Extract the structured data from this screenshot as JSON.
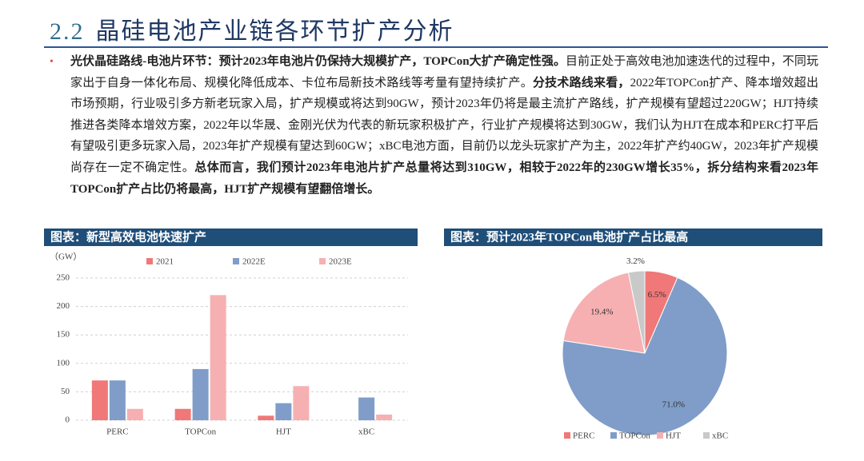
{
  "header": {
    "number": "2.2",
    "title": "晶硅电池产业链各环节扩产分析"
  },
  "body": {
    "runs": [
      {
        "text": "光伏晶硅路线-电池片环节：预计2023年电池片仍保持大规模扩产，TOPCon大扩产确定性强。",
        "bold": true
      },
      {
        "text": "目前正处于高效电池加速迭代的过程中，不同玩家出于自身一体化布局、规模化降低成本、卡位布局新技术路线等考量有望持续扩产。",
        "bold": false
      },
      {
        "text": "分技术路线来看，",
        "bold": true
      },
      {
        "text": "2022年TOPCon扩产、降本增效超出市场预期，行业吸引多方新老玩家入局，扩产规模或将达到90GW，预计2023年仍将是最主流扩产路线，扩产规模有望超过220GW；HJT持续推进各类降本增效方案，2022年以华晟、金刚光伏为代表的新玩家积极扩产，行业扩产规模将达到30GW，我们认为HJT在成本和PERC打平后有望吸引更多玩家入局，2023年扩产规模有望达到60GW；xBC电池方面，目前仍以龙头玩家扩产为主，2022年扩产约40GW，2023年扩产规模尚存在一定不确定性。",
        "bold": false
      },
      {
        "text": "总体而言，我们预计2023年电池片扩产总量将达到310GW，相较于2022年的230GW增长35%，拆分结构来看2023年TOPCon扩产占比仍将最高，HJT扩产规模有望翻倍增长。",
        "bold": true
      }
    ]
  },
  "chart_data": [
    {
      "type": "bar",
      "title": "图表：新型高效电池快速扩产",
      "y_label": "（GW）",
      "categories": [
        "PERC",
        "TOPCon",
        "HJT",
        "xBC"
      ],
      "series": [
        {
          "name": "2021",
          "color": "#f07878",
          "values": [
            70,
            20,
            8,
            0
          ]
        },
        {
          "name": "2022E",
          "color": "#7f9dc8",
          "values": [
            70,
            90,
            30,
            40
          ]
        },
        {
          "name": "2023E",
          "color": "#f6b0b2",
          "values": [
            20,
            220,
            60,
            10
          ]
        }
      ],
      "ylim": [
        0,
        250
      ],
      "yticks": [
        0,
        50,
        100,
        150,
        200,
        250
      ],
      "grid": true,
      "legend": "top"
    },
    {
      "type": "pie",
      "title": "图表：预计2023年TOPCon电池扩产占比最高",
      "categories": [
        "PERC",
        "TOPCon",
        "HJT",
        "xBC"
      ],
      "values": [
        6.5,
        71,
        19.4,
        3.2
      ],
      "value_labels": [
        "6.5%",
        "71.0%",
        "19.4%",
        "3.2%"
      ],
      "colors": [
        "#f07878",
        "#7f9dc8",
        "#f6b0b2",
        "#c9c9c9"
      ],
      "legend": "bottom"
    }
  ]
}
